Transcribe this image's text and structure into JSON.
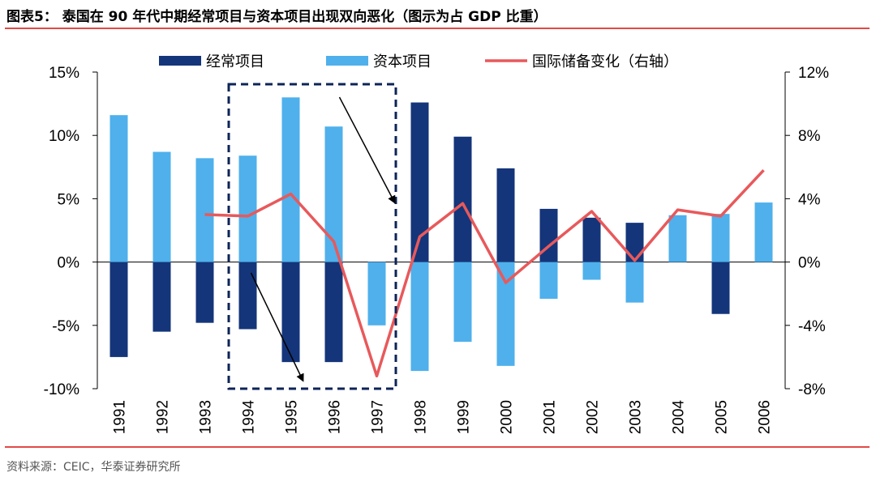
{
  "title": "图表5： 泰国在 90 年代中期经常项目与资本项目出现双向恶化（图示为占 GDP 比重）",
  "source": "资料来源：CEIC，华泰证券研究所",
  "colors": {
    "current_account": "#14357a",
    "capital_account": "#4fb0ec",
    "reserves": "#e8595b",
    "accent_rule": "#e14a46",
    "highlight_box": "#0d2458"
  },
  "chart_data": {
    "type": "bar",
    "categories": [
      "1991",
      "1992",
      "1993",
      "1994",
      "1995",
      "1996",
      "1997",
      "1998",
      "1999",
      "2000",
      "2001",
      "2002",
      "2003",
      "2004",
      "2005",
      "2006"
    ],
    "series": [
      {
        "name": "经常项目",
        "axis": "left",
        "type": "bar",
        "values": [
          -7.5,
          -5.5,
          -4.8,
          -5.3,
          -7.9,
          -7.9,
          -2.1,
          12.6,
          9.9,
          7.4,
          4.2,
          3.5,
          3.1,
          1.6,
          -4.1,
          1.0
        ]
      },
      {
        "name": "资本项目",
        "axis": "left",
        "type": "bar",
        "values": [
          11.6,
          8.7,
          8.2,
          8.4,
          13.0,
          10.7,
          -5.0,
          -8.6,
          -6.3,
          -8.2,
          -2.9,
          -1.4,
          -3.2,
          3.7,
          3.8,
          4.7
        ]
      },
      {
        "name": "国际储备变化（右轴）",
        "axis": "right",
        "type": "line",
        "values": [
          null,
          null,
          3.0,
          2.9,
          4.3,
          1.3,
          -7.2,
          1.6,
          3.7,
          -1.3,
          1.0,
          3.2,
          0.1,
          3.3,
          2.9,
          5.8
        ]
      }
    ],
    "left_axis": {
      "ylim": [
        -10,
        15
      ],
      "ticks": [
        "-10%",
        "-5%",
        "0%",
        "5%",
        "10%",
        "15%"
      ]
    },
    "right_axis": {
      "ylim": [
        -8,
        12
      ],
      "ticks": [
        "-8%",
        "-4%",
        "0%",
        "4%",
        "8%",
        "12%"
      ]
    },
    "legend_position": "top",
    "annotations": [
      {
        "type": "dashed-box",
        "from_category": "1994",
        "to_category": "1997"
      },
      {
        "type": "arrow",
        "direction": "down-right",
        "near_category": "1997",
        "sign": "positive"
      },
      {
        "type": "arrow",
        "direction": "down-right",
        "near_category": "1994",
        "sign": "negative"
      }
    ]
  }
}
